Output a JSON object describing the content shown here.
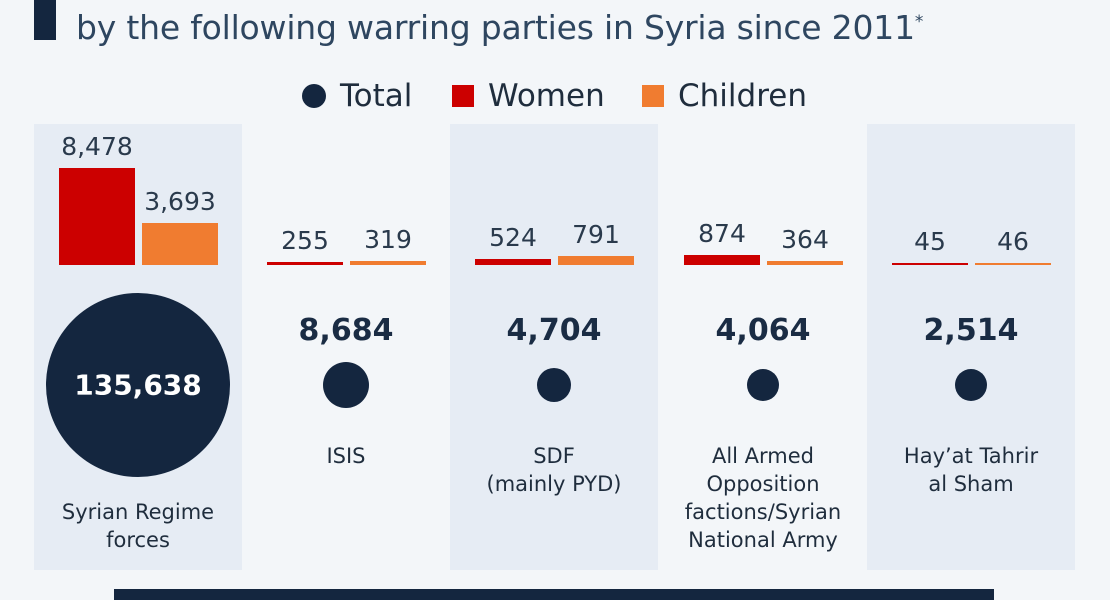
{
  "title": {
    "line1": "",
    "line2": "by the following warring parties in Syria since 2011",
    "footnote_mark": "*"
  },
  "legend": [
    {
      "label": "Total",
      "color": "#14263f",
      "shape": "circle"
    },
    {
      "label": "Women",
      "color": "#cc0000",
      "shape": "square"
    },
    {
      "label": "Children",
      "color": "#f07c30",
      "shape": "square"
    }
  ],
  "chart_data": {
    "type": "bar",
    "categories": [
      "Syrian Regime forces",
      "ISIS",
      "SDF (mainly PYD)",
      "All Armed Opposition factions/Syrian National Army",
      "Hay’at Tahrir al Sham"
    ],
    "category_display": [
      "Syrian Regime\nforces",
      "ISIS",
      "SDF\n(mainly PYD)",
      "All Armed\nOpposition\nfactions/Syrian\nNational Army",
      "Hay’at Tahrir\nal Sham"
    ],
    "series": [
      {
        "name": "Total",
        "values": [
          135638,
          8684,
          4704,
          4064,
          2514
        ],
        "labels": [
          "135,638",
          "8,684",
          "4,704",
          "4,064",
          "2,514"
        ],
        "color": "#14263f"
      },
      {
        "name": "Women",
        "values": [
          8478,
          255,
          524,
          874,
          45
        ],
        "labels": [
          "8,478",
          "255",
          "524",
          "874",
          "45"
        ],
        "color": "#cc0000"
      },
      {
        "name": "Children",
        "values": [
          3693,
          319,
          791,
          364,
          46
        ],
        "labels": [
          "3,693",
          "319",
          "791",
          "364",
          "46"
        ],
        "color": "#f07c30"
      }
    ],
    "shaded_columns": [
      0,
      2,
      4
    ]
  }
}
